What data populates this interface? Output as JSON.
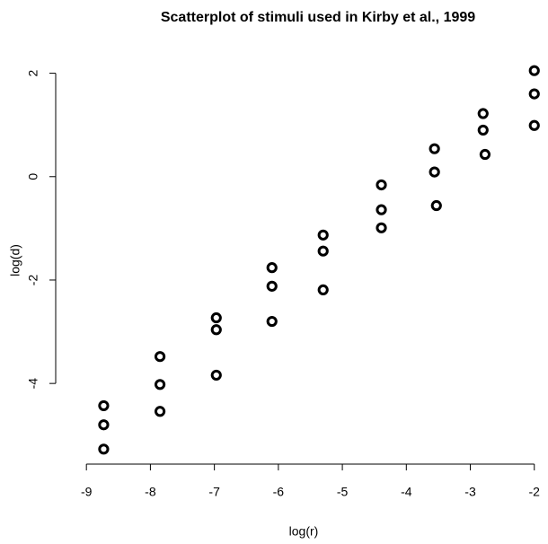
{
  "chart_data": {
    "type": "scatter",
    "title": "Scatterplot of stimuli used in Kirby et al., 1999",
    "x_label": "log(r)",
    "y_label": "log(d)",
    "series": [
      {
        "color": "#000000",
        "x": [
          -8.73,
          -8.73,
          -8.73,
          -7.85,
          -7.85,
          -7.85,
          -6.97,
          -6.97,
          -6.97,
          -6.1,
          -6.1,
          -6.1,
          -5.3,
          -5.3,
          -5.3,
          -4.39,
          -4.39,
          -4.39,
          -3.56,
          -3.56,
          -3.53,
          -2.8,
          -2.8,
          -2.77,
          -2.0,
          -2.0,
          -2.0
        ],
        "values": [
          -4.43,
          -4.8,
          -5.27,
          -3.48,
          -4.02,
          -4.54,
          -2.73,
          -2.96,
          -3.84,
          -1.76,
          -2.12,
          -2.8,
          -1.13,
          -1.44,
          -2.19,
          -0.16,
          -0.64,
          -0.99,
          0.54,
          0.09,
          -0.56,
          1.22,
          0.9,
          0.43,
          2.05,
          1.6,
          0.99
        ]
      }
    ],
    "xlim": [
      -9.48,
      -1.8
    ],
    "ylim": [
      -5.56,
      2.34
    ],
    "xticks": [
      -9,
      -8,
      -7,
      -6,
      -5,
      -4,
      -3,
      -2
    ],
    "yticks": [
      -4,
      -2,
      0,
      2
    ],
    "grid": false
  }
}
